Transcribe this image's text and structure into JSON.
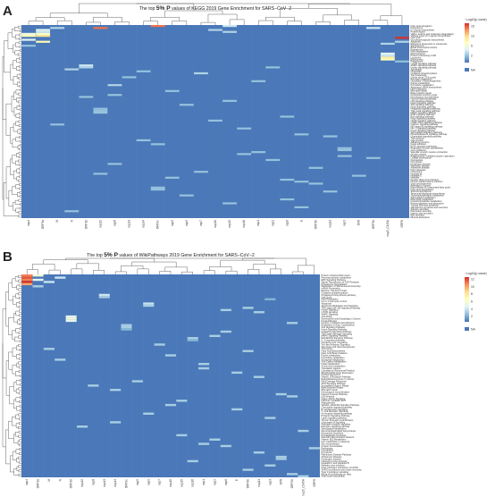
{
  "chart_data": [
    {
      "type": "heatmap",
      "panel_letter": "A",
      "title_pre": "The top",
      "title_big": "5% P",
      "title_post": "values of KEGG 2019 Gene Enrichment for SARS−CoV−2",
      "legend_title": "−Log10(p value)",
      "legend_ticks": [
        "15",
        "10",
        "5",
        "2"
      ],
      "legend_na": "NA",
      "colorscale": [
        "#4575b4",
        "#91bfdb",
        "#e0f3f8",
        "#ffffbf",
        "#fee090",
        "#fc8d59",
        "#d73027"
      ],
      "na_color": "#4a78b8",
      "columns": [
        "nsp4",
        "ORF3a",
        "M",
        "N",
        "ORF10",
        "nsp12",
        "nsp8",
        "nsp13",
        "nsp14",
        "ORF9c",
        "nsp5",
        "nsp9",
        "nsp7",
        "nsp10",
        "nsp15",
        "nsp16",
        "nsp1",
        "nsp2",
        "nsp6",
        "E",
        "ORF3b",
        "nsp11",
        "nsp3",
        "Orf8",
        "ORF9b",
        "nsp5_C145A",
        "ORF6"
      ],
      "rows": [
        "Fatty acid elongation",
        "Peroxisome",
        "N−Glycan biosynthesis",
        "Protein export",
        "Valine, leucine and isoleucine degradation",
        "Various types of N−glycan biosynthesis",
        "Cell cycle",
        "Glycosaminoglycan biosynthesis",
        "Apoptosis",
        "Ribosome biogenesis in eukaryotes",
        "Spliceosome",
        "Basal transcription factors",
        "Proteasome",
        "RNA degradation",
        "RNA transport",
        "Protein processing in ER",
        "Lysosome",
        "Endocytosis",
        "Phagosome",
        "mTOR signaling pathway",
        "AMPK signaling pathway",
        "Insulin signaling pathway",
        "Autophagy",
        "Mitophagy",
        "Oxidative phosphorylation",
        "Thermogenesis",
        "Citrate cycle (TCA cycle)",
        "Pyruvate metabolism",
        "Glycolysis / Gluconeogenesis",
        "Purine metabolism",
        "Pyrimidine metabolism",
        "Aminoacyl−tRNA biosynthesis",
        "DNA replication",
        "Mismatch repair",
        "Base excision repair",
        "Nucleotide excision repair",
        "Homologous recombination",
        "Fanconi anemia pathway",
        "p53 signaling pathway",
        "Hippo signaling pathway",
        "Wnt signaling pathway",
        "Notch signaling pathway",
        "Hedgehog signaling pathway",
        "TGF−beta signaling pathway",
        "MAPK signaling pathway",
        "ErbB signaling pathway",
        "Ras signaling pathway",
        "Rap1 signaling pathway",
        "cAMP signaling pathway",
        "cGMP−PKG signaling pathway",
        "Calcium signaling pathway",
        "NF−kappa B signaling pathway",
        "HIF−1 signaling pathway",
        "FoxO signaling pathway",
        "Sphingolipid signaling pathway",
        "Phospholipase D signaling pathway",
        "Chemokine signaling pathway",
        "Tight junction",
        "Gap junction",
        "Adherens junction",
        "Focal adhesion",
        "ECM−receptor interaction",
        "Regulation of actin cytoskeleton",
        "Axon guidance",
        "Vascular smooth muscle contraction",
        "Oocyte meiosis",
        "Progesterone−mediated oocyte maturation",
        "Cellular senescence",
        "Necroptosis",
        "Ferroptosis",
        "Huntington disease",
        "Parkinson disease",
        "Alzheimer disease",
        "Prion diseases",
        "Influenza A",
        "Hepatitis B",
        "Hepatitis C",
        "Measles",
        "Epstein−Barr virus infection",
        "Human papillomavirus infection",
        "Viral carcinogenesis",
        "Pathways in cancer",
        "Biosynthesis of unsaturated fatty acids",
        "Fatty acid degradation",
        "Steroid biosynthesis",
        "Terpenoid backbone biosynthesis",
        "Glycerophospholipid metabolism",
        "Sphingolipid metabolism",
        "Ether lipid metabolism",
        "Inositol phosphate metabolism",
        "Protein digestion and absorption",
        "Thyroid hormone synthesis",
        "Aldosterone synthesis and secretion",
        "Salivary secretion",
        "Pancreatic secretion",
        "Gastric acid secretion",
        "Bile secretion",
        "Mineral absorption"
      ],
      "cells": [
        [
          0,
          9,
          15
        ],
        [
          0,
          14,
          5
        ],
        [
          1,
          2,
          4
        ],
        [
          1,
          5,
          15
        ],
        [
          1,
          24,
          5
        ],
        [
          2,
          1,
          6
        ],
        [
          2,
          13,
          4
        ],
        [
          3,
          1,
          5
        ],
        [
          3,
          14,
          4
        ],
        [
          4,
          0,
          7
        ],
        [
          4,
          1,
          8
        ],
        [
          5,
          0,
          9
        ],
        [
          5,
          1,
          11
        ],
        [
          6,
          26,
          17
        ],
        [
          7,
          0,
          6
        ],
        [
          8,
          1,
          9
        ],
        [
          8,
          26,
          4
        ],
        [
          9,
          25,
          4
        ],
        [
          10,
          0,
          3
        ],
        [
          14,
          25,
          6
        ],
        [
          15,
          25,
          5
        ],
        [
          16,
          25,
          10
        ],
        [
          17,
          25,
          9
        ],
        [
          18,
          26,
          3
        ],
        [
          20,
          4,
          5
        ],
        [
          21,
          4,
          4
        ],
        [
          21,
          17,
          3
        ],
        [
          22,
          3,
          4
        ],
        [
          23,
          8,
          3
        ],
        [
          24,
          12,
          4
        ],
        [
          26,
          7,
          3
        ],
        [
          28,
          16,
          3
        ],
        [
          30,
          6,
          4
        ],
        [
          33,
          10,
          3
        ],
        [
          35,
          6,
          3
        ],
        [
          36,
          4,
          3
        ],
        [
          38,
          14,
          3
        ],
        [
          40,
          11,
          3
        ],
        [
          42,
          5,
          3
        ],
        [
          43,
          5,
          3
        ],
        [
          44,
          5,
          3
        ],
        [
          46,
          18,
          3
        ],
        [
          48,
          13,
          3
        ],
        [
          50,
          2,
          3
        ],
        [
          52,
          15,
          3
        ],
        [
          55,
          19,
          3
        ],
        [
          56,
          21,
          3
        ],
        [
          58,
          8,
          3
        ],
        [
          60,
          9,
          3
        ],
        [
          62,
          22,
          3
        ],
        [
          63,
          22,
          3
        ],
        [
          64,
          16,
          3
        ],
        [
          65,
          15,
          3
        ],
        [
          66,
          22,
          3
        ],
        [
          67,
          24,
          3
        ],
        [
          68,
          17,
          3
        ],
        [
          70,
          6,
          3
        ],
        [
          72,
          20,
          3
        ],
        [
          74,
          12,
          3
        ],
        [
          75,
          5,
          3
        ],
        [
          76,
          23,
          3
        ],
        [
          77,
          10,
          3
        ],
        [
          78,
          18,
          3
        ],
        [
          79,
          19,
          3
        ],
        [
          80,
          20,
          3
        ],
        [
          82,
          9,
          3
        ],
        [
          83,
          9,
          3
        ],
        [
          84,
          21,
          3
        ],
        [
          86,
          11,
          3
        ],
        [
          88,
          18,
          3
        ],
        [
          90,
          14,
          3
        ],
        [
          92,
          19,
          3
        ],
        [
          94,
          3,
          3
        ]
      ]
    },
    {
      "type": "heatmap",
      "panel_letter": "B",
      "title_pre": "The top",
      "title_big": "5% P",
      "title_post": "values of WikiPathways 2019 Gene Enrichment for SARS−CoV−2",
      "legend_title": "−Log10(p value)",
      "legend_ticks": [
        "12",
        "10",
        "8",
        "6",
        "4",
        "2"
      ],
      "legend_na": "NA",
      "colorscale": [
        "#4575b4",
        "#91bfdb",
        "#e0f3f8",
        "#ffffbf",
        "#fee090",
        "#fc8d59",
        "#d73027"
      ],
      "na_color": "#4a78b8",
      "columns": [
        "nsp4",
        "ORF3a",
        "M",
        "N",
        "ORF10",
        "nsp12",
        "nsp8",
        "nsp13",
        "nsp14",
        "ORF9c",
        "nsp5",
        "nsp9",
        "nsp7",
        "nsp10",
        "nsp15",
        "nsp16",
        "nsp1",
        "nsp2",
        "nsp6",
        "E",
        "ORF3b",
        "nsp11",
        "nsp3",
        "Orf8",
        "ORF9b",
        "nsp5_C145A",
        "ORF6"
      ],
      "rows": [
        "Protein mitochondrial import",
        "Peroxisomal lipid metabolism",
        "ERK Signaling Pathway",
        "Signal Transduction of S1P Receptor",
        "Proteasome Degradation",
        "Metabolism of Spliceosomal Assembly",
        "mRNA Processing",
        "Electron Transport Chain",
        "Oxidative phosphorylation",
        "Cholesterol biosynthesis pathway",
        "Cell Cycle",
        "DNA Replication",
        "G1 to S cell cycle control",
        "Apoptosis",
        "Apoptosis Modulation and Signaling",
        "TNF−alpha NF−kB Signaling Pathway",
        "Insulin Signaling",
        "mTOR signaling",
        "AMPK Signaling",
        "Autophagy",
        "Senescence and Autophagy in Cancer",
        "Focal Adhesion",
        "Integrin−mediated Cell Adhesion",
        "Regulation of Actin Cytoskeleton",
        "Wnt Signaling Pathway",
        "Notch Signaling Pathway",
        "Hedgehog Signaling Pathway",
        "TGF−beta Receptor Signaling",
        "MAPK Signaling Pathway",
        "EGF/EGFR Signaling Pathway",
        "IL−6 signaling pathway",
        "Interferon type I signaling",
        "Toll−like Receptor Signaling",
        "Glycolysis and Gluconeogenesis",
        "TCA Cycle",
        "Fatty Acid Biosynthesis",
        "Fatty Acid Beta Oxidation",
        "Purine metabolism",
        "Pyrimidine metabolism",
        "Nucleotide Metabolism",
        "One Carbon Metabolism",
        "Folate Metabolism",
        "Amino Acid metabolism",
        "Translation Factors",
        "Cytoplasmic Ribosomal Proteins",
        "Mitochondrial Gene Expression",
        "Nuclear Receptors",
        "Vitamin D Receptor Pathway",
        "Retinoblastoma Gene in Cancer",
        "DNA Damage Response",
        "ATM Signaling Pathway",
        "Nucleotide Excision Repair",
        "Base Excision Repair",
        "Mismatch repair",
        "Homologous recombination",
        "Fanconi Anemia Pathway",
        "p53 Network",
        "Hippo−Merlin Signaling",
        "Hypoxia−mediated EMT",
        "Angiogenesis",
        "VEGFA−VEGFR2 Signaling Pathway",
        "Chemokine signaling pathway",
        "B Cell Receptor Signaling",
        "T−Cell Receptor Signaling",
        "Kit receptor signaling pathway",
        "Prolactin Signaling Pathway",
        "Leptin signaling pathway",
        "Thymic Stromal LymphoPoietin",
        "Oncostatin M Signaling",
        "Androgen receptor signaling",
        "Estrogen signaling pathway",
        "Sphingolipid Metabolism",
        "Glycerophospholipid biosynthesis",
        "Eicosanoid Synthesis",
        "Prostaglandin Synthesis",
        "Selenium Micronutrient Network",
        "Vitamin B12 Metabolism",
        "Iron metabolism in placenta",
        "Zinc homeostasis",
        "Copper homeostasis",
        "Ferroptosis",
        "Necroptosis",
        "Pyroptosis",
        "Parkinsons Disease Pathway",
        "Alzheimers Disease",
        "Huntington disease",
        "Influenza A virus infection",
        "Hepatitis C and Hepatitis B",
        "Measles virus infection",
        "Host−pathogen interaction of HCMV",
        "SARS coronavirus and innate immunity",
        "Type II interferon signaling",
        "Ebola Virus Pathway on Host",
        "Viral Acute Myocarditis"
      ],
      "cells": [
        [
          0,
          0,
          12
        ],
        [
          0,
          1,
          6
        ],
        [
          1,
          0,
          13
        ],
        [
          1,
          3,
          4
        ],
        [
          2,
          0,
          12
        ],
        [
          2,
          1,
          5
        ],
        [
          3,
          0,
          14
        ],
        [
          3,
          2,
          4
        ],
        [
          4,
          0,
          11
        ],
        [
          5,
          1,
          3
        ],
        [
          9,
          7,
          4
        ],
        [
          10,
          7,
          3
        ],
        [
          11,
          22,
          2
        ],
        [
          13,
          11,
          4
        ],
        [
          14,
          11,
          3
        ],
        [
          15,
          20,
          3
        ],
        [
          16,
          18,
          3
        ],
        [
          17,
          21,
          3
        ],
        [
          19,
          4,
          5
        ],
        [
          20,
          4,
          6
        ],
        [
          21,
          4,
          5
        ],
        [
          22,
          24,
          3
        ],
        [
          23,
          9,
          3
        ],
        [
          24,
          9,
          3
        ],
        [
          25,
          9,
          2
        ],
        [
          26,
          18,
          3
        ],
        [
          28,
          17,
          3
        ],
        [
          29,
          15,
          3
        ],
        [
          30,
          15,
          2
        ],
        [
          32,
          12,
          3
        ],
        [
          34,
          2,
          3
        ],
        [
          35,
          20,
          3
        ],
        [
          37,
          13,
          3
        ],
        [
          39,
          3,
          3
        ],
        [
          41,
          16,
          3
        ],
        [
          43,
          16,
          3
        ],
        [
          45,
          19,
          3
        ],
        [
          47,
          21,
          3
        ],
        [
          49,
          10,
          3
        ],
        [
          51,
          6,
          3
        ],
        [
          53,
          8,
          3
        ],
        [
          55,
          23,
          3
        ],
        [
          56,
          24,
          3
        ],
        [
          58,
          14,
          3
        ],
        [
          60,
          13,
          3
        ],
        [
          62,
          19,
          3
        ],
        [
          64,
          11,
          3
        ],
        [
          66,
          22,
          3
        ],
        [
          68,
          8,
          3
        ],
        [
          70,
          5,
          3
        ],
        [
          72,
          25,
          3
        ],
        [
          74,
          14,
          3
        ],
        [
          76,
          17,
          3
        ],
        [
          78,
          16,
          3
        ],
        [
          79,
          18,
          3
        ],
        [
          80,
          26,
          3
        ],
        [
          82,
          21,
          3
        ],
        [
          84,
          23,
          3
        ],
        [
          85,
          23,
          3
        ],
        [
          86,
          15,
          3
        ],
        [
          88,
          22,
          3
        ],
        [
          90,
          20,
          3
        ],
        [
          92,
          24,
          3
        ],
        [
          93,
          25,
          3
        ]
      ]
    }
  ]
}
